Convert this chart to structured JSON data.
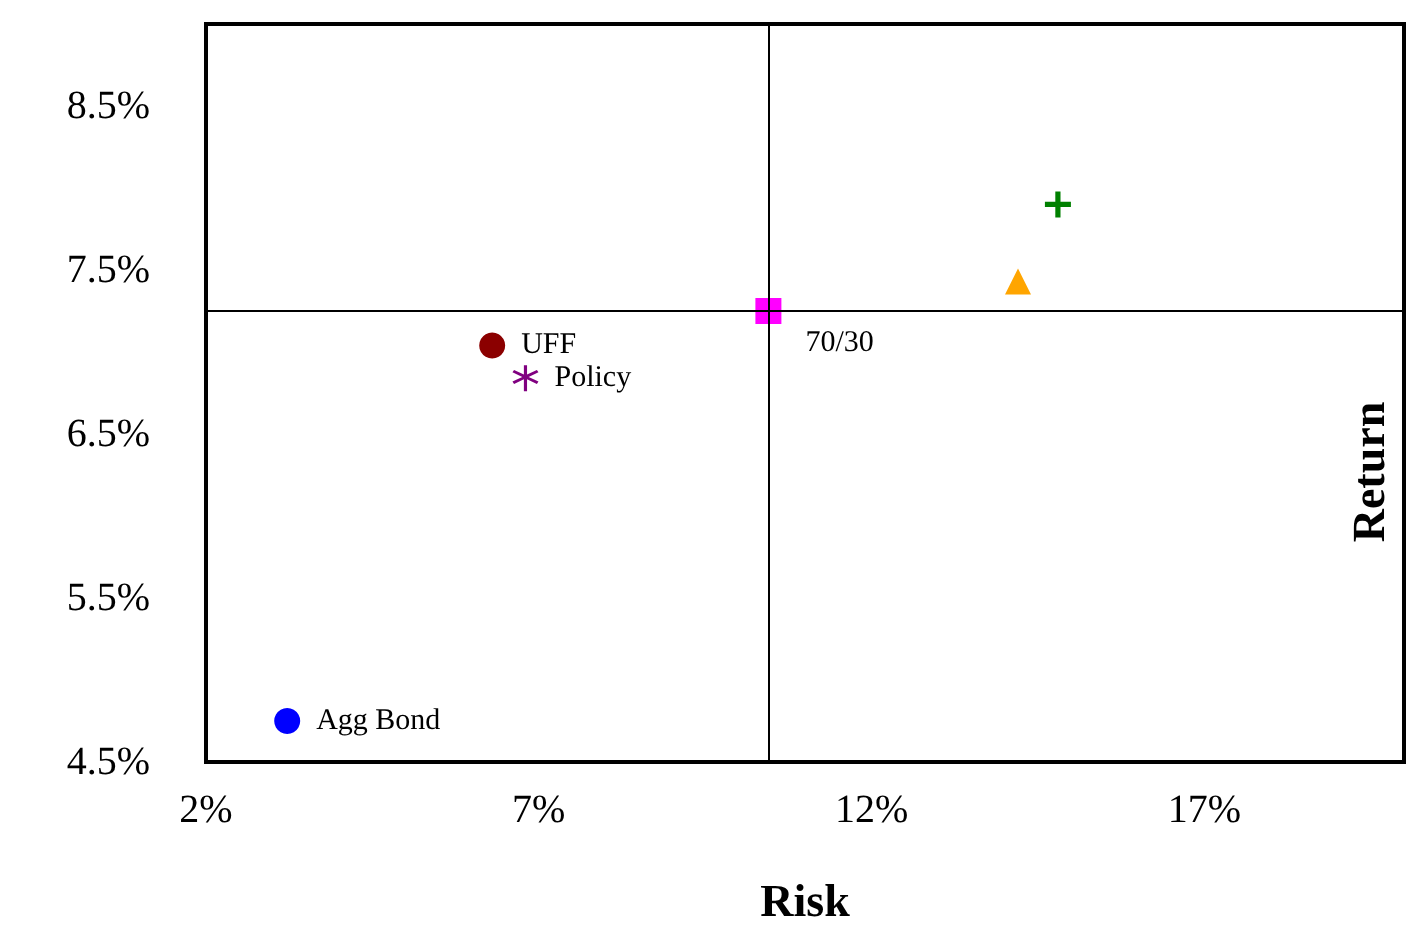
{
  "chart_data": {
    "type": "scatter",
    "xlabel": "Risk",
    "ylabel": "Return",
    "xlim": [
      2,
      20
    ],
    "ylim": [
      4.5,
      9.0
    ],
    "xticks": [
      {
        "value": 2,
        "label": "2%"
      },
      {
        "value": 7,
        "label": "7%"
      },
      {
        "value": 12,
        "label": "12%"
      },
      {
        "value": 17,
        "label": "17%"
      }
    ],
    "yticks": [
      {
        "value": 4.5,
        "label": "4.5%"
      },
      {
        "value": 5.5,
        "label": "5.5%"
      },
      {
        "value": 6.5,
        "label": "6.5%"
      },
      {
        "value": 7.5,
        "label": "7.5%"
      },
      {
        "value": 8.5,
        "label": "8.5%"
      }
    ],
    "grid": false,
    "legend": false,
    "ref_lines": [
      {
        "axis": "x",
        "value": 10.45,
        "color": "#000000"
      },
      {
        "axis": "y",
        "value": 7.25,
        "color": "#000000"
      }
    ],
    "series": [
      {
        "name": "Agg Bond",
        "color": "#0000ff",
        "marker": "circle",
        "x": [
          3.22
        ],
        "values": [
          4.75
        ]
      },
      {
        "name": "UFF",
        "color": "#8b0000",
        "marker": "circle",
        "x": [
          6.3
        ],
        "values": [
          7.04
        ]
      },
      {
        "name": "Policy",
        "color": "#800080",
        "marker": "star",
        "x": [
          6.8
        ],
        "values": [
          6.84
        ]
      },
      {
        "name": "70/30",
        "color": "#ff00ff",
        "marker": "square",
        "x": [
          10.45
        ],
        "values": [
          7.25
        ]
      },
      {
        "color": "#008000",
        "marker": "cross",
        "x": [
          14.8
        ],
        "values": [
          7.9
        ]
      },
      {
        "color": "#ffa500",
        "marker": "triangle",
        "x": [
          14.2
        ],
        "values": [
          7.43
        ]
      }
    ]
  }
}
